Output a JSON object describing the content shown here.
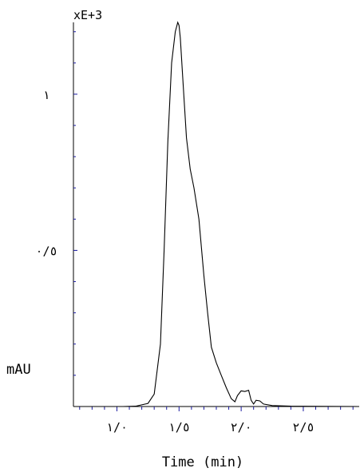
{
  "chart_data": {
    "type": "line",
    "title": "",
    "xlabel": "Time (min)",
    "ylabel": "mAU",
    "y_multiplier_label": "xE+3",
    "xlim": [
      0.65,
      2.95
    ],
    "ylim": [
      0,
      1.23
    ],
    "x_ticks": [
      {
        "value": 1.0,
        "label": "١/٠"
      },
      {
        "value": 1.5,
        "label": "١/٥"
      },
      {
        "value": 2.0,
        "label": "٢/٠"
      },
      {
        "value": 2.5,
        "label": "٢/٥"
      }
    ],
    "y_ticks": [
      {
        "value": 0.5,
        "label": "٠/٥"
      },
      {
        "value": 1.0,
        "label": "١"
      }
    ],
    "grid": false,
    "legend": "none",
    "line_color": "#000000",
    "tick_color": "#1a1aa0",
    "series": [
      {
        "x": [
          0.65,
          1.05,
          1.15,
          1.25,
          1.3,
          1.35,
          1.38,
          1.41,
          1.44,
          1.47,
          1.49,
          1.5,
          1.51,
          1.53,
          1.56,
          1.59,
          1.62,
          1.66,
          1.7,
          1.73,
          1.76,
          1.8,
          1.84,
          1.88,
          1.92,
          1.95,
          1.97,
          2.0,
          2.03,
          2.06,
          2.08,
          2.1,
          2.12,
          2.15,
          2.18,
          2.25,
          2.4,
          2.95
        ],
        "y": [
          0.0,
          0.0,
          0.001,
          0.01,
          0.04,
          0.2,
          0.5,
          0.85,
          1.1,
          1.2,
          1.23,
          1.22,
          1.18,
          1.05,
          0.86,
          0.76,
          0.7,
          0.6,
          0.42,
          0.3,
          0.19,
          0.14,
          0.1,
          0.06,
          0.025,
          0.015,
          0.035,
          0.05,
          0.048,
          0.052,
          0.02,
          0.008,
          0.02,
          0.018,
          0.008,
          0.003,
          0.001,
          0.0
        ]
      }
    ]
  }
}
